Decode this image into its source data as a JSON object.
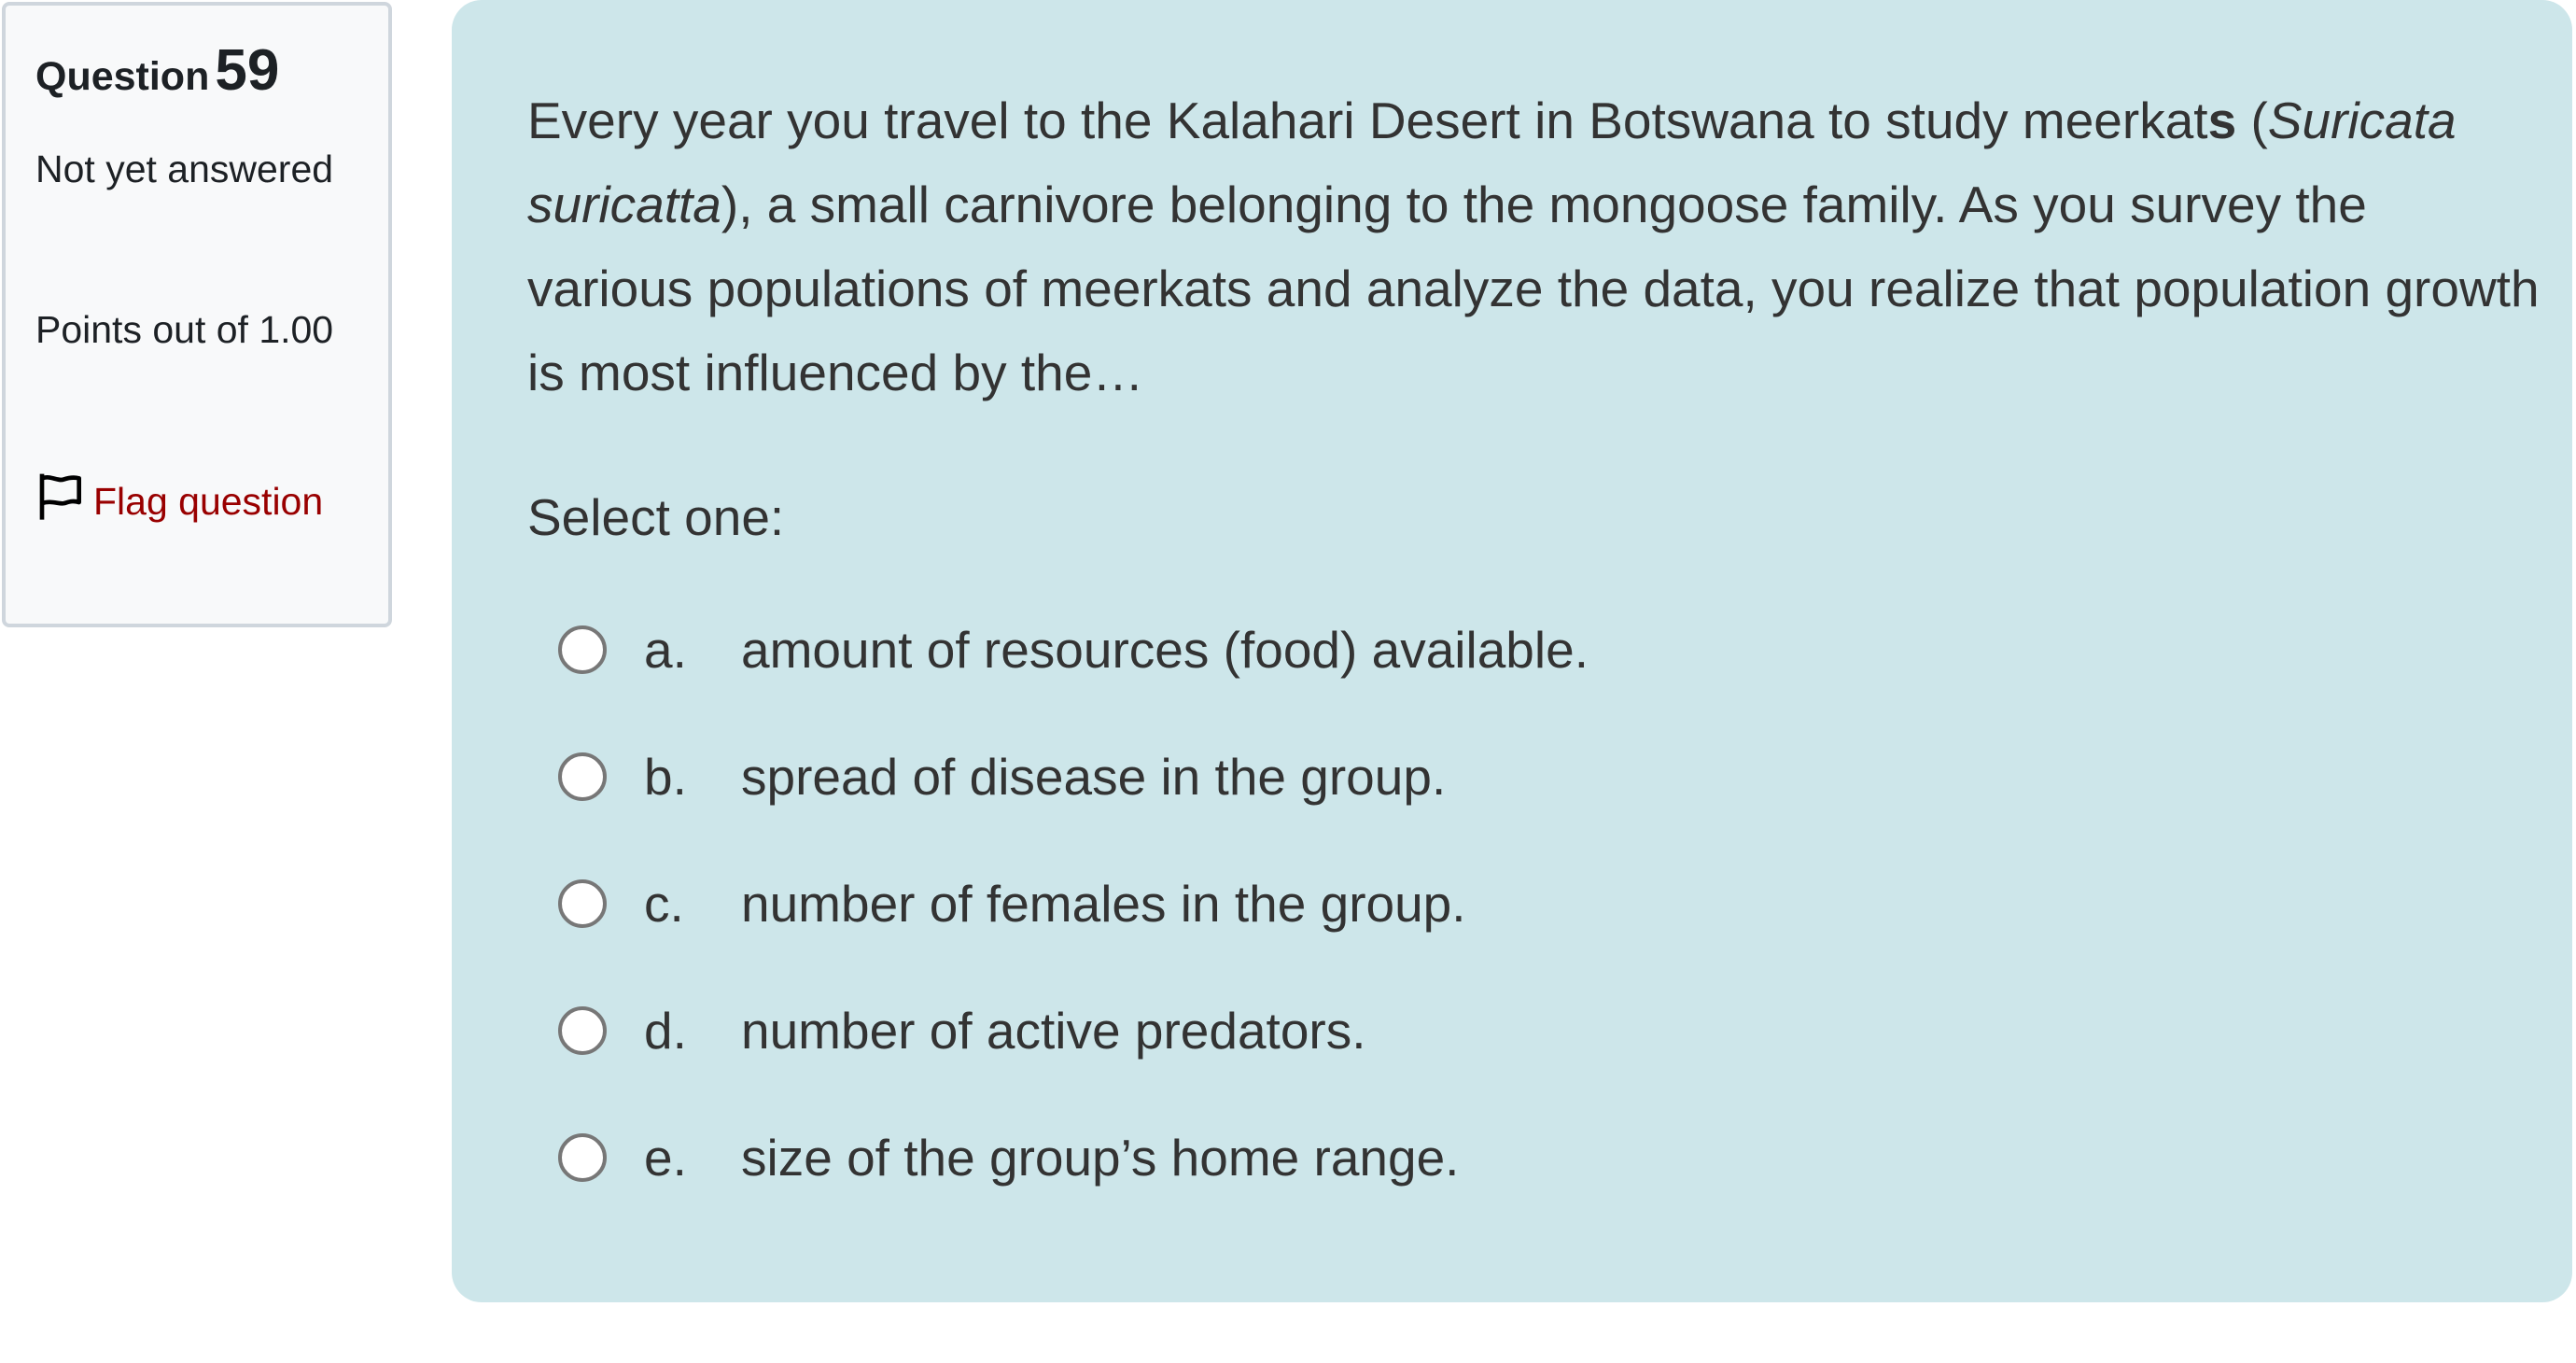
{
  "info": {
    "question_label": "Question",
    "question_number": "59",
    "state": "Not yet answered",
    "grade": "Points out of 1.00",
    "flag_label": "Flag question"
  },
  "question": {
    "text_part1": "Every year you travel to the Kalahari Desert in Botswana to study meerkat",
    "text_bold_s": "s",
    "text_part2": " (",
    "species_italic": "Suricata suricatta",
    "text_part3": "), a small carnivore belonging to the mongoose family.  As you survey the various populations of meerkats and analyze the data, you realize that population growth is most influenced by the…",
    "prompt": "Select one:",
    "options": [
      {
        "letter": "a.",
        "text": "amount of resources (food) available."
      },
      {
        "letter": "b.",
        "text": "spread of disease in the group."
      },
      {
        "letter": "c.",
        "text": "number of females in the group."
      },
      {
        "letter": "d.",
        "text": "number of active predators."
      },
      {
        "letter": "e.",
        "text": "size of the group’s home range."
      }
    ]
  },
  "colors": {
    "panel_bg": "#cde6ea",
    "flag_link": "#990000"
  }
}
